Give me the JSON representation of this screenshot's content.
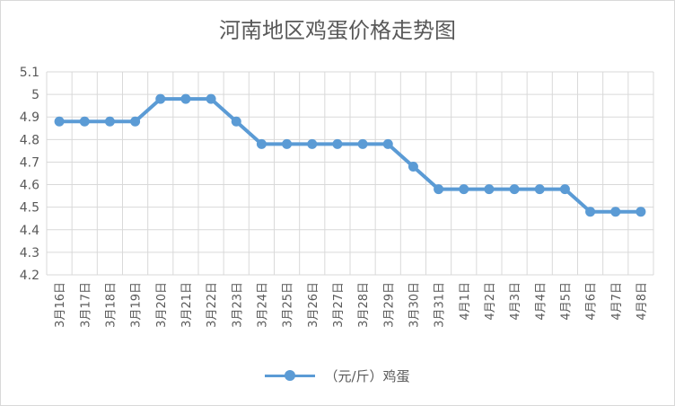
{
  "chart_data": {
    "type": "line",
    "title": "河南地区鸡蛋价格走势图",
    "xlabel": "",
    "ylabel": "",
    "ylim": [
      4.2,
      5.1
    ],
    "yticks": [
      "4.2",
      "4.3",
      "4.4",
      "4.5",
      "4.6",
      "4.7",
      "4.8",
      "4.9",
      "5",
      "5.1"
    ],
    "grid": true,
    "legend_position": "bottom",
    "series_color": "#5b9bd5",
    "categories": [
      "3月16日",
      "3月17日",
      "3月18日",
      "3月19日",
      "3月20日",
      "3月21日",
      "3月22日",
      "3月23日",
      "3月24日",
      "3月25日",
      "3月26日",
      "3月27日",
      "3月28日",
      "3月29日",
      "3月30日",
      "3月31日",
      "4月1日",
      "4月2日",
      "4月3日",
      "4月4日",
      "4月5日",
      "4月6日",
      "4月7日",
      "4月8日"
    ],
    "series": [
      {
        "name": "（元/斤）鸡蛋",
        "values": [
          4.88,
          4.88,
          4.88,
          4.88,
          4.98,
          4.98,
          4.98,
          4.88,
          4.78,
          4.78,
          4.78,
          4.78,
          4.78,
          4.78,
          4.68,
          4.58,
          4.58,
          4.58,
          4.58,
          4.58,
          4.58,
          4.48,
          4.48,
          4.48
        ]
      }
    ]
  }
}
